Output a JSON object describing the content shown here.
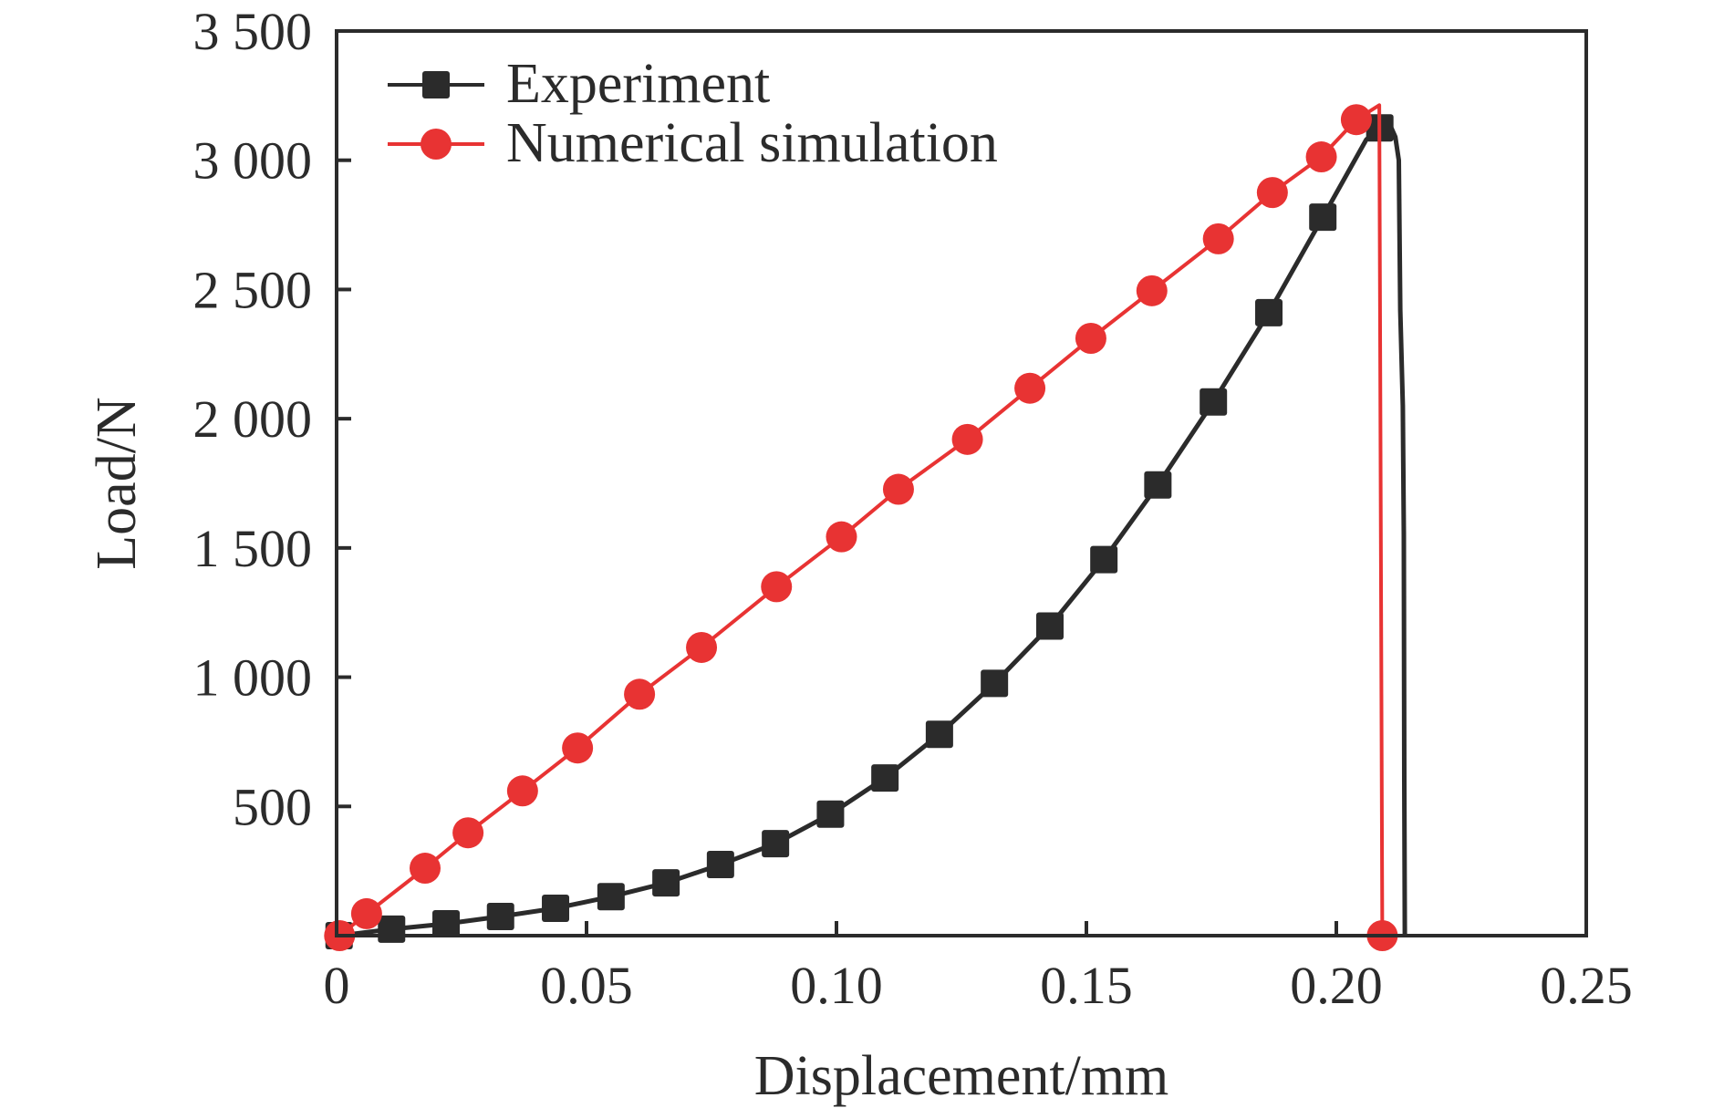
{
  "chart_data": {
    "type": "line",
    "title": "",
    "xlabel": "Displacement/mm",
    "ylabel": "Load/N",
    "xlim": [
      0,
      0.25
    ],
    "ylim": [
      0,
      3500
    ],
    "x_ticks": [
      0,
      0.05,
      0.1,
      0.15,
      0.2,
      0.25
    ],
    "x_tick_labels": [
      "0",
      "0.05",
      "0.10",
      "0.15",
      "0.20",
      "0.25"
    ],
    "y_ticks": [
      500,
      1000,
      1500,
      2000,
      2500,
      3000,
      3500
    ],
    "y_tick_labels": [
      "500",
      "1 000",
      "1 500",
      "2 000",
      "2 500",
      "3 000",
      "3 500"
    ],
    "grid": false,
    "legend_position": "top-left",
    "series": [
      {
        "name": "Experiment",
        "color": "#2b2b2b",
        "marker": "square",
        "markers": [
          {
            "x": 0.0005,
            "y": 0
          },
          {
            "x": 0.011,
            "y": 25
          },
          {
            "x": 0.0219,
            "y": 46
          },
          {
            "x": 0.0328,
            "y": 74
          },
          {
            "x": 0.0438,
            "y": 106
          },
          {
            "x": 0.0549,
            "y": 151
          },
          {
            "x": 0.0659,
            "y": 204
          },
          {
            "x": 0.0768,
            "y": 275
          },
          {
            "x": 0.0878,
            "y": 356
          },
          {
            "x": 0.0988,
            "y": 470
          },
          {
            "x": 0.1097,
            "y": 610
          },
          {
            "x": 0.1206,
            "y": 779
          },
          {
            "x": 0.1316,
            "y": 976
          },
          {
            "x": 0.1427,
            "y": 1198
          },
          {
            "x": 0.1535,
            "y": 1455
          },
          {
            "x": 0.1643,
            "y": 1744
          },
          {
            "x": 0.1754,
            "y": 2065
          },
          {
            "x": 0.1865,
            "y": 2410
          },
          {
            "x": 0.1973,
            "y": 2780
          },
          {
            "x": 0.2087,
            "y": 3125
          }
        ],
        "curve": [
          {
            "x": 0.0005,
            "y": 0
          },
          {
            "x": 0.011,
            "y": 25
          },
          {
            "x": 0.0219,
            "y": 46
          },
          {
            "x": 0.0328,
            "y": 74
          },
          {
            "x": 0.0438,
            "y": 106
          },
          {
            "x": 0.0549,
            "y": 151
          },
          {
            "x": 0.0659,
            "y": 204
          },
          {
            "x": 0.0768,
            "y": 275
          },
          {
            "x": 0.0878,
            "y": 356
          },
          {
            "x": 0.0988,
            "y": 470
          },
          {
            "x": 0.1097,
            "y": 610
          },
          {
            "x": 0.1206,
            "y": 779
          },
          {
            "x": 0.1316,
            "y": 976
          },
          {
            "x": 0.1427,
            "y": 1198
          },
          {
            "x": 0.1535,
            "y": 1455
          },
          {
            "x": 0.1643,
            "y": 1744
          },
          {
            "x": 0.1754,
            "y": 2065
          },
          {
            "x": 0.1865,
            "y": 2410
          },
          {
            "x": 0.1973,
            "y": 2780
          },
          {
            "x": 0.206,
            "y": 3080
          },
          {
            "x": 0.2087,
            "y": 3125
          },
          {
            "x": 0.211,
            "y": 3125
          },
          {
            "x": 0.2118,
            "y": 3090
          },
          {
            "x": 0.2125,
            "y": 3000
          },
          {
            "x": 0.2128,
            "y": 2420
          },
          {
            "x": 0.2133,
            "y": 2050
          },
          {
            "x": 0.2135,
            "y": 1550
          },
          {
            "x": 0.2136,
            "y": 600
          },
          {
            "x": 0.2137,
            "y": 0
          }
        ]
      },
      {
        "name": "Numerical simulation",
        "color": "#e83333",
        "marker": "circle",
        "markers": [
          {
            "x": 0.0006,
            "y": 0
          },
          {
            "x": 0.006,
            "y": 85
          },
          {
            "x": 0.0177,
            "y": 261
          },
          {
            "x": 0.0263,
            "y": 398
          },
          {
            "x": 0.0372,
            "y": 560
          },
          {
            "x": 0.0482,
            "y": 726
          },
          {
            "x": 0.0606,
            "y": 934
          },
          {
            "x": 0.073,
            "y": 1115
          },
          {
            "x": 0.088,
            "y": 1350
          },
          {
            "x": 0.101,
            "y": 1543
          },
          {
            "x": 0.1124,
            "y": 1727
          },
          {
            "x": 0.1262,
            "y": 1920
          },
          {
            "x": 0.1387,
            "y": 2118
          },
          {
            "x": 0.1509,
            "y": 2311
          },
          {
            "x": 0.1631,
            "y": 2495
          },
          {
            "x": 0.1764,
            "y": 2696
          },
          {
            "x": 0.1872,
            "y": 2875
          },
          {
            "x": 0.197,
            "y": 3013
          },
          {
            "x": 0.204,
            "y": 3157
          },
          {
            "x": 0.2092,
            "y": 0
          }
        ],
        "curve": [
          {
            "x": 0.0006,
            "y": 0
          },
          {
            "x": 0.006,
            "y": 85
          },
          {
            "x": 0.0177,
            "y": 261
          },
          {
            "x": 0.0263,
            "y": 398
          },
          {
            "x": 0.0372,
            "y": 560
          },
          {
            "x": 0.0482,
            "y": 726
          },
          {
            "x": 0.0606,
            "y": 934
          },
          {
            "x": 0.073,
            "y": 1115
          },
          {
            "x": 0.088,
            "y": 1350
          },
          {
            "x": 0.101,
            "y": 1543
          },
          {
            "x": 0.1124,
            "y": 1727
          },
          {
            "x": 0.1262,
            "y": 1920
          },
          {
            "x": 0.1387,
            "y": 2118
          },
          {
            "x": 0.1509,
            "y": 2311
          },
          {
            "x": 0.1631,
            "y": 2495
          },
          {
            "x": 0.1764,
            "y": 2696
          },
          {
            "x": 0.1872,
            "y": 2875
          },
          {
            "x": 0.197,
            "y": 3013
          },
          {
            "x": 0.204,
            "y": 3157
          },
          {
            "x": 0.2086,
            "y": 3213
          },
          {
            "x": 0.2092,
            "y": 0
          }
        ]
      }
    ]
  }
}
